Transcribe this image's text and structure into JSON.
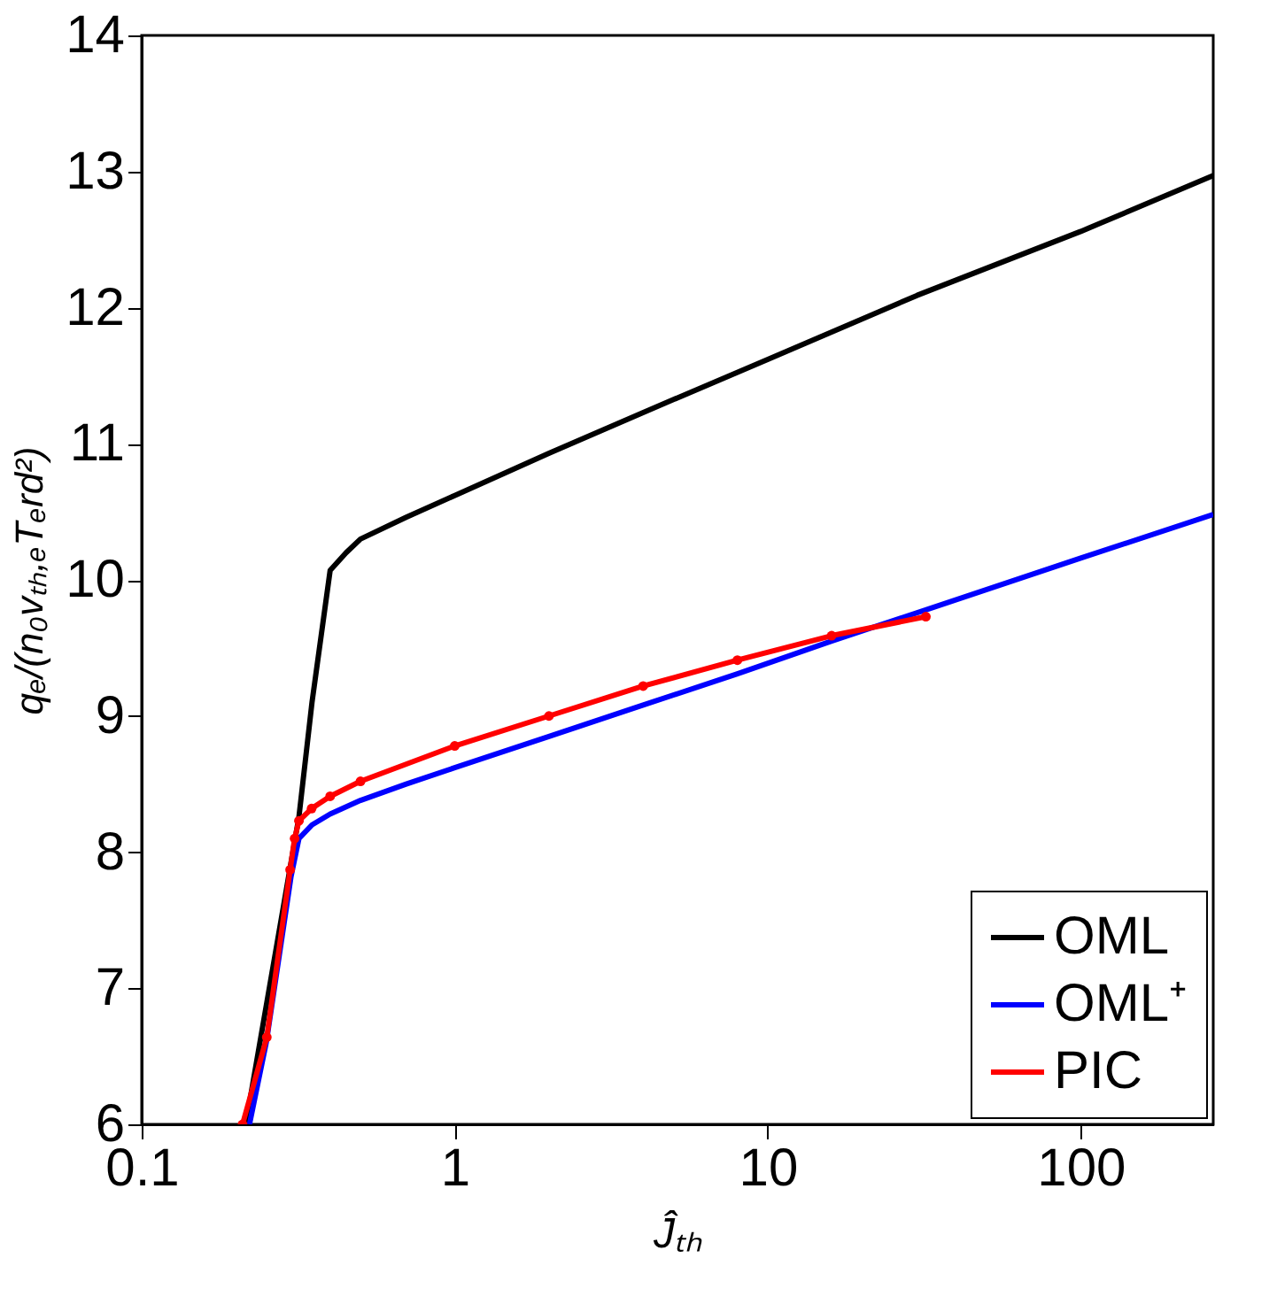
{
  "chart_data": {
    "type": "line",
    "xlabel": "Ĵₜₕ",
    "ylabel": "qₑ/(n₀vₜₕ,ₑTₑrd²)",
    "log": "x",
    "xlim": [
      0.1,
      265
    ],
    "xticks": [
      0.1,
      1,
      10,
      100
    ],
    "ylim": [
      6,
      14
    ],
    "yticks": [
      6,
      7,
      8,
      9,
      10,
      11,
      12,
      13,
      14
    ],
    "grid": false,
    "legend": "bottom right",
    "line_style": "solid",
    "series": [
      {
        "name": "OML",
        "color": "#000000",
        "marker": "none",
        "x": [
          0.215,
          0.318,
          0.35,
          0.4,
          0.45,
          0.5,
          0.7,
          1,
          2,
          4,
          10,
          30,
          100,
          265
        ],
        "values": [
          6,
          8.26,
          9.1,
          10.07,
          10.2,
          10.3,
          10.46,
          10.62,
          10.93,
          11.23,
          11.62,
          12.09,
          12.56,
          12.97
        ]
      },
      {
        "name": "OML⁺",
        "color": "#0000ff",
        "marker": "none",
        "x": [
          0.221,
          0.25,
          0.3,
          0.318,
          0.35,
          0.4,
          0.5,
          0.7,
          1,
          2,
          4,
          8,
          16,
          32,
          100,
          265
        ],
        "values": [
          6,
          6.6,
          7.82,
          8.1,
          8.2,
          8.28,
          8.38,
          8.5,
          8.62,
          8.85,
          9.08,
          9.31,
          9.55,
          9.78,
          10.16,
          10.48
        ]
      },
      {
        "name": "PIC",
        "color": "#ff0000",
        "marker": "circle",
        "x": [
          0.21,
          0.251,
          0.298,
          0.308,
          0.318,
          0.349,
          0.4,
          0.5,
          1,
          2,
          4,
          8,
          16,
          32
        ],
        "values": [
          6,
          6.64,
          7.87,
          8.1,
          8.23,
          8.32,
          8.41,
          8.52,
          8.78,
          9.0,
          9.22,
          9.41,
          9.59,
          9.73
        ]
      }
    ]
  }
}
